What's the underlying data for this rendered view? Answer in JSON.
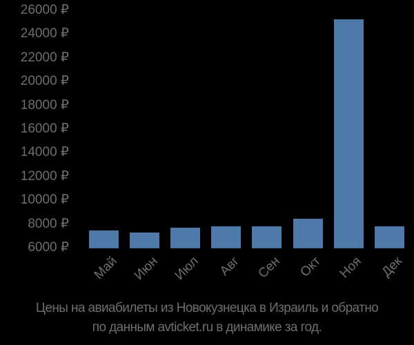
{
  "chart_data": {
    "type": "bar",
    "title": "Цены на авиабилеты из Новокузнецка в Израиль и обратно по данным avticket.ru в динамике за год.",
    "xlabel": "",
    "ylabel": "",
    "categories": [
      "Май",
      "Июн",
      "Июл",
      "Авг",
      "Сен",
      "Окт",
      "Ноя",
      "Дек"
    ],
    "values": [
      7450,
      7280,
      7700,
      7800,
      7800,
      8450,
      25250,
      7800
    ],
    "ylim": [
      6000,
      26000
    ],
    "yticks": [
      6000,
      8000,
      10000,
      12000,
      14000,
      16000,
      18000,
      20000,
      22000,
      24000,
      26000
    ],
    "ytick_labels": [
      "6000 ₽",
      "8000 ₽",
      "10000 ₽",
      "12000 ₽",
      "14000 ₽",
      "16000 ₽",
      "18000 ₽",
      "20000 ₽",
      "22000 ₽",
      "24000 ₽",
      "26000 ₽"
    ],
    "grid": false,
    "legend": null,
    "bar_color": "#4f79a8"
  },
  "caption": {
    "line1": "Цены на авиабилеты из Новокузнецка в Израиль и обратно",
    "line2": "по данным avticket.ru в динамике за год."
  }
}
